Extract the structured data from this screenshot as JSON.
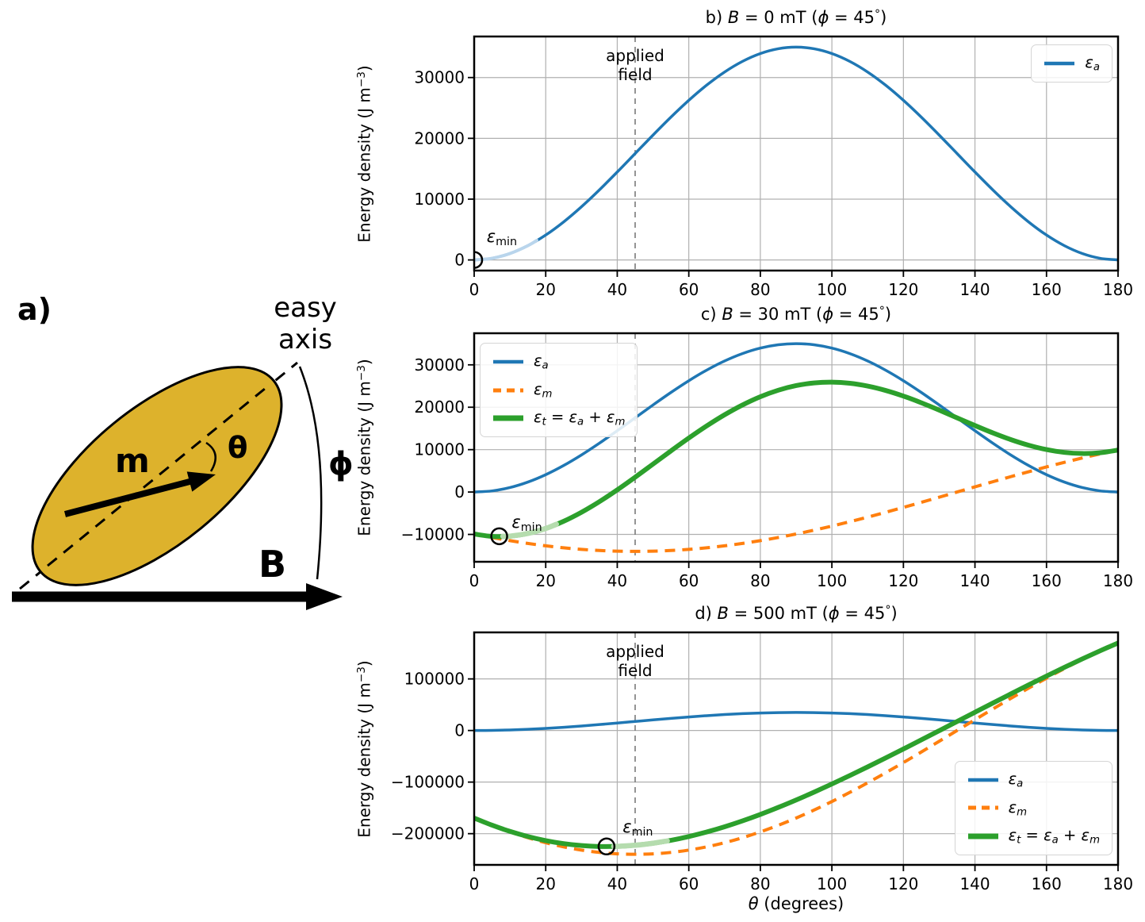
{
  "figure": {
    "panel_a": {
      "label": "a)",
      "easy_axis_line1": "easy",
      "easy_axis_line2": "axis",
      "m_label": "m",
      "theta_label": "θ",
      "phi_label": "ϕ",
      "b_label": "B",
      "ellipse_fill": "#DDB22C",
      "outline_color": "#000000"
    }
  },
  "chart_data": [
    {
      "type": "line",
      "panel": "b",
      "title_parts": [
        {
          "t": "b) "
        },
        {
          "t": "B",
          "i": true
        },
        {
          "t": " = 0 mT ("
        },
        {
          "t": "ϕ",
          "i": true
        },
        {
          "t": " = 45"
        },
        {
          "t": "°",
          "sup": true
        },
        {
          "t": ")"
        }
      ],
      "ylabel_parts": [
        {
          "t": "Energy density (J m"
        },
        {
          "t": "−3",
          "sup": true
        },
        {
          "t": ")"
        }
      ],
      "x": [
        0,
        5,
        10,
        15,
        20,
        25,
        30,
        35,
        40,
        45,
        50,
        55,
        60,
        65,
        70,
        75,
        80,
        85,
        90,
        95,
        100,
        105,
        110,
        115,
        120,
        125,
        130,
        135,
        140,
        145,
        150,
        155,
        160,
        165,
        170,
        175,
        180
      ],
      "xlim": [
        0,
        180
      ],
      "ylim": [
        -1750,
        36750
      ],
      "xticks": [
        0,
        20,
        40,
        60,
        80,
        100,
        120,
        140,
        160,
        180
      ],
      "xtick_labels": [
        "0",
        "20",
        "40",
        "60",
        "80",
        "100",
        "120",
        "140",
        "160",
        "180"
      ],
      "yticks": [
        0,
        10000,
        20000,
        30000
      ],
      "ytick_labels": [
        "0",
        "10000",
        "20000",
        "30000"
      ],
      "grid": true,
      "series": [
        {
          "key": "ea",
          "color": "#1f77b4",
          "width": 3.5,
          "dash": null,
          "label_parts": [
            {
              "t": "ε",
              "i": true
            },
            {
              "t": "a",
              "i": true,
              "sub": true
            }
          ],
          "values": [
            0,
            266,
            1055,
            2345,
            4094,
            6251,
            8750,
            11515,
            14461,
            17500,
            20539,
            23485,
            26250,
            28749,
            30906,
            32655,
            33945,
            34734,
            35000,
            34734,
            33945,
            32655,
            30906,
            28749,
            26250,
            23485,
            20539,
            17500,
            14461,
            11515,
            8750,
            6251,
            4094,
            2345,
            1055,
            266,
            0
          ]
        }
      ],
      "legend_pos": "top-right",
      "vline": {
        "x": 45,
        "label_lines": [
          "applied",
          "field"
        ]
      },
      "highlight": {
        "series": "ea",
        "x0": 0,
        "x1": 17.5,
        "color": "#b9d5ec"
      },
      "min_marker": {
        "x": 0,
        "y": 0
      },
      "emin_label": {
        "x": 3.5,
        "y": 5400,
        "parts": [
          {
            "t": "ε",
            "i": true
          },
          {
            "t": "min",
            "sub": true
          }
        ]
      }
    },
    {
      "type": "line",
      "panel": "c",
      "title_parts": [
        {
          "t": "c) "
        },
        {
          "t": "B",
          "i": true
        },
        {
          "t": " = 30 mT ("
        },
        {
          "t": "ϕ",
          "i": true
        },
        {
          "t": " = 45"
        },
        {
          "t": "°",
          "sup": true
        },
        {
          "t": ")"
        }
      ],
      "ylabel_parts": [
        {
          "t": "Energy density (J m"
        },
        {
          "t": "−3",
          "sup": true
        },
        {
          "t": ")"
        }
      ],
      "x": [
        0,
        5,
        10,
        15,
        20,
        25,
        30,
        35,
        40,
        45,
        50,
        55,
        60,
        65,
        70,
        75,
        80,
        85,
        90,
        95,
        100,
        105,
        110,
        115,
        120,
        125,
        130,
        135,
        140,
        145,
        150,
        155,
        160,
        165,
        170,
        175,
        180
      ],
      "xlim": [
        0,
        180
      ],
      "ylim": [
        -16450,
        37450
      ],
      "xticks": [
        0,
        20,
        40,
        60,
        80,
        100,
        120,
        140,
        160,
        180
      ],
      "xtick_labels": [
        "0",
        "20",
        "40",
        "60",
        "80",
        "100",
        "120",
        "140",
        "160",
        "180"
      ],
      "yticks": [
        -10000,
        0,
        10000,
        20000,
        30000
      ],
      "ytick_labels": [
        "−10000",
        "0",
        "10000",
        "20000",
        "30000"
      ],
      "grid": true,
      "series": [
        {
          "key": "ea",
          "color": "#1f77b4",
          "width": 3.5,
          "dash": null,
          "label_parts": [
            {
              "t": "ε",
              "i": true
            },
            {
              "t": "a",
              "i": true,
              "sub": true
            }
          ],
          "values": [
            0,
            266,
            1055,
            2345,
            4094,
            6251,
            8750,
            11515,
            14461,
            17500,
            20539,
            23485,
            26250,
            28749,
            30906,
            32655,
            33945,
            34734,
            35000,
            34734,
            33945,
            32655,
            30906,
            28749,
            26250,
            23485,
            20539,
            17500,
            14461,
            11515,
            8750,
            6251,
            4094,
            2345,
            1055,
            266,
            0
          ]
        },
        {
          "key": "em",
          "color": "#ff7f0e",
          "width": 4,
          "dash": [
            13,
            9
          ],
          "label_parts": [
            {
              "t": "ε",
              "i": true
            },
            {
              "t": "m",
              "i": true,
              "sub": true
            }
          ],
          "values": [
            -9899,
            -10725,
            -11468,
            -12124,
            -12688,
            -13156,
            -13523,
            -13787,
            -13947,
            -14000,
            -13947,
            -13787,
            -13523,
            -13156,
            -12688,
            -12124,
            -11468,
            -10725,
            -9899,
            -8999,
            -8030,
            -7000,
            -5917,
            -4788,
            -3623,
            -2431,
            -1220,
            0,
            1220,
            2431,
            3623,
            4788,
            5917,
            7000,
            8030,
            8999,
            9899
          ]
        },
        {
          "key": "et",
          "color": "#2ca02c",
          "width": 6,
          "dash": null,
          "label_parts": [
            {
              "t": "ε",
              "i": true
            },
            {
              "t": "t",
              "i": true,
              "sub": true
            },
            {
              "t": " = "
            },
            {
              "t": "ε",
              "i": true
            },
            {
              "t": "a",
              "i": true,
              "sub": true
            },
            {
              "t": " + "
            },
            {
              "t": "ε",
              "i": true
            },
            {
              "t": "m",
              "i": true,
              "sub": true
            }
          ],
          "values": [
            -9899,
            -10459,
            -10413,
            -9779,
            -8594,
            -6905,
            -4773,
            -2272,
            514,
            3500,
            6592,
            9698,
            12727,
            15593,
            18218,
            20531,
            22477,
            24009,
            25101,
            25735,
            25915,
            25655,
            24989,
            23961,
            22627,
            21054,
            19319,
            17500,
            15681,
            13946,
            12373,
            11039,
            10011,
            9345,
            9085,
            9265,
            9899
          ]
        }
      ],
      "legend_pos": "top-left",
      "vline": {
        "x": 45,
        "label_lines": null
      },
      "highlight": {
        "series": "et",
        "x0": 8,
        "x1": 23,
        "color": "#b5dcae"
      },
      "min_marker": {
        "x": 7,
        "y": -10430
      },
      "emin_label": {
        "x": 10.5,
        "y": -4900,
        "parts": [
          {
            "t": "ε",
            "i": true
          },
          {
            "t": "min",
            "sub": true
          }
        ]
      }
    },
    {
      "type": "line",
      "panel": "d",
      "title_parts": [
        {
          "t": "d) "
        },
        {
          "t": "B",
          "i": true
        },
        {
          "t": " = 500 mT ("
        },
        {
          "t": "ϕ",
          "i": true
        },
        {
          "t": " = 45"
        },
        {
          "t": "°",
          "sup": true
        },
        {
          "t": ")"
        }
      ],
      "ylabel_parts": [
        {
          "t": "Energy density (J m"
        },
        {
          "t": "−3",
          "sup": true
        },
        {
          "t": ")"
        }
      ],
      "xlabel_parts": [
        {
          "t": "θ",
          "i": true
        },
        {
          "t": " (degrees)"
        }
      ],
      "x": [
        0,
        5,
        10,
        15,
        20,
        25,
        30,
        35,
        40,
        45,
        50,
        55,
        60,
        65,
        70,
        75,
        80,
        85,
        90,
        95,
        100,
        105,
        110,
        115,
        120,
        125,
        130,
        135,
        140,
        145,
        150,
        155,
        160,
        165,
        170,
        175,
        180
      ],
      "xlim": [
        0,
        180
      ],
      "ylim": [
        -260500,
        190200
      ],
      "xticks": [
        0,
        20,
        40,
        60,
        80,
        100,
        120,
        140,
        160,
        180
      ],
      "xtick_labels": [
        "0",
        "20",
        "40",
        "60",
        "80",
        "100",
        "120",
        "140",
        "160",
        "180"
      ],
      "yticks": [
        -200000,
        -100000,
        0,
        100000
      ],
      "ytick_labels": [
        "−200000",
        "−100000",
        "0",
        "100000"
      ],
      "grid": true,
      "series": [
        {
          "key": "ea",
          "color": "#1f77b4",
          "width": 3.5,
          "dash": null,
          "label_parts": [
            {
              "t": "ε",
              "i": true
            },
            {
              "t": "a",
              "i": true,
              "sub": true
            }
          ],
          "values": [
            0,
            266,
            1055,
            2345,
            4094,
            6251,
            8750,
            11515,
            14461,
            17500,
            20539,
            23485,
            26250,
            28749,
            30906,
            32655,
            33945,
            34734,
            35000,
            34734,
            33945,
            32655,
            30906,
            28749,
            26250,
            23485,
            20539,
            17500,
            14461,
            11515,
            8750,
            6251,
            4094,
            2345,
            1055,
            266,
            0
          ]
        },
        {
          "key": "em",
          "color": "#ff7f0e",
          "width": 4,
          "dash": [
            13,
            9
          ],
          "label_parts": [
            {
              "t": "ε",
              "i": true
            },
            {
              "t": "m",
              "i": true,
              "sub": true
            }
          ],
          "values": [
            -169706,
            -183850,
            -196596,
            -207846,
            -217514,
            -225526,
            -231822,
            -236354,
            -239086,
            -240000,
            -239086,
            -236354,
            -231822,
            -225526,
            -217514,
            -207846,
            -196596,
            -183850,
            -169706,
            -154270,
            -137660,
            -120000,
            -101429,
            -82085,
            -62117,
            -41676,
            -20918,
            0,
            20918,
            41676,
            62117,
            82085,
            101429,
            120000,
            137660,
            154270,
            169706
          ]
        },
        {
          "key": "et",
          "color": "#2ca02c",
          "width": 6,
          "dash": null,
          "label_parts": [
            {
              "t": "ε",
              "i": true
            },
            {
              "t": "t",
              "i": true,
              "sub": true
            },
            {
              "t": " = "
            },
            {
              "t": "ε",
              "i": true
            },
            {
              "t": "a",
              "i": true,
              "sub": true
            },
            {
              "t": " + "
            },
            {
              "t": "ε",
              "i": true
            },
            {
              "t": "m",
              "i": true,
              "sub": true
            }
          ],
          "values": [
            -169706,
            -183584,
            -195541,
            -205501,
            -213420,
            -219275,
            -223072,
            -224839,
            -224625,
            -222500,
            -218547,
            -212869,
            -205572,
            -196777,
            -186608,
            -175191,
            -162651,
            -149116,
            -134706,
            -119536,
            -103715,
            -87345,
            -70523,
            -53336,
            -35867,
            -18191,
            -379,
            17500,
            35379,
            53191,
            70867,
            88336,
            105523,
            122345,
            138715,
            154536,
            169706
          ]
        }
      ],
      "legend_pos": "bottom-right",
      "vline": {
        "x": 45,
        "label_lines": [
          "applied",
          "field"
        ]
      },
      "highlight": {
        "series": "et",
        "x0": 39,
        "x1": 54,
        "color": "#b5dcae"
      },
      "min_marker": {
        "x": 37,
        "y": -224800
      },
      "emin_label": {
        "x": 41.5,
        "y": -168000,
        "parts": [
          {
            "t": "ε",
            "i": true
          },
          {
            "t": "min",
            "sub": true
          }
        ]
      }
    }
  ],
  "style": {
    "grid_color": "#b0b0b0",
    "vline_color": "#7a7a7a",
    "spine_color": "#000000",
    "marker_color": "#000000"
  }
}
